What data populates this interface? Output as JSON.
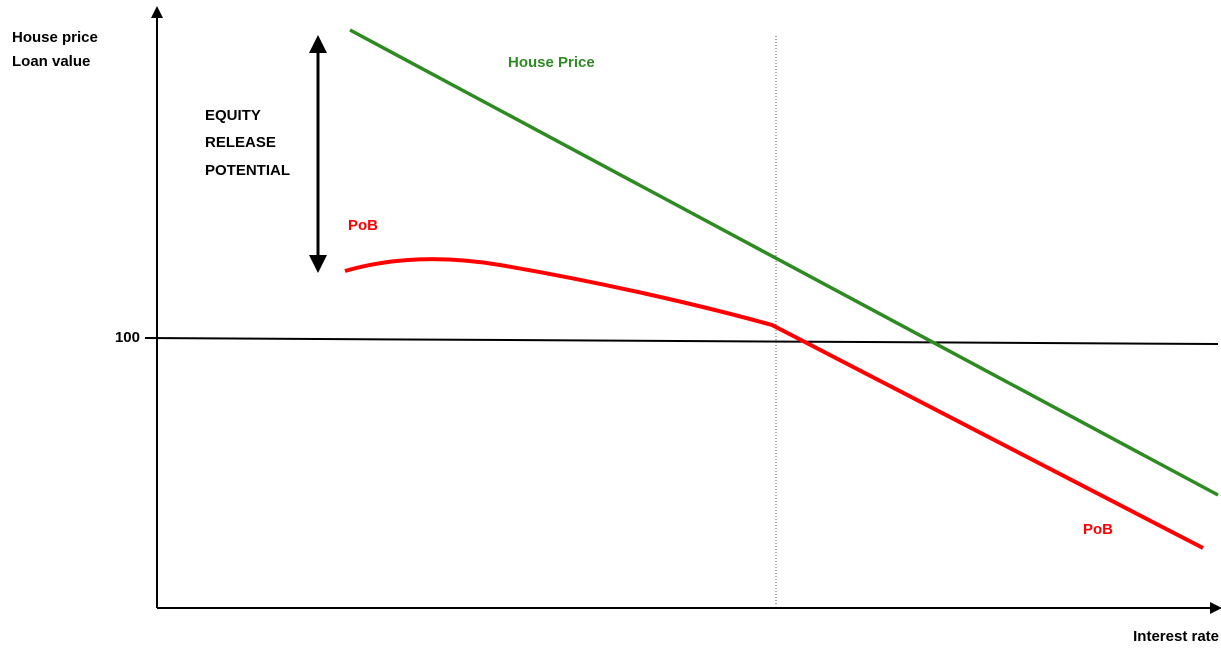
{
  "axis": {
    "y_label_line1": "House price",
    "y_label_line2": "Loan value",
    "x_label": "Interest rate",
    "tick_100": "100"
  },
  "annotation": {
    "line1": "EQUITY",
    "line2": "RELEASE",
    "line3": "POTENTIAL"
  },
  "labels": {
    "house_price": "House Price",
    "pob_upper": "PoB",
    "pob_lower": "PoB"
  }
}
